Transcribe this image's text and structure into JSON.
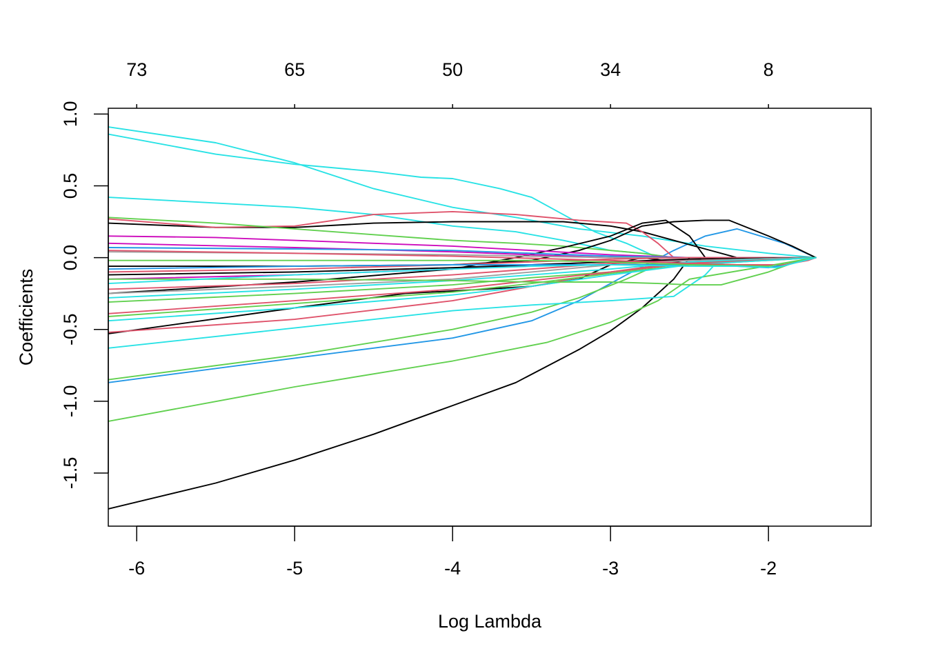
{
  "chart_data": {
    "type": "line",
    "title": "",
    "xlabel": "Log Lambda",
    "ylabel": "Coefficients",
    "xlim": [
      -6.18,
      -1.35
    ],
    "ylim": [
      -1.87,
      1.04
    ],
    "x_ticks": [
      -6,
      -5,
      -4,
      -3,
      -2
    ],
    "x_tick_labels": [
      "-6",
      "-5",
      "-4",
      "-3",
      "-2"
    ],
    "y_ticks": [
      1.0,
      0.5,
      0.0,
      -0.5,
      -1.0,
      -1.5
    ],
    "y_tick_labels": [
      "1.0",
      "0.5",
      "0.0",
      "-0.5",
      "-1.0",
      "-1.5"
    ],
    "top_axis": {
      "ticks": [
        -6,
        -5,
        -4,
        -3,
        -2
      ],
      "labels": [
        "73",
        "65",
        "50",
        "34",
        "8"
      ]
    },
    "grid": false,
    "legend": "none",
    "series": [
      {
        "color": "#000000",
        "x": [
          -6.18,
          -5.5,
          -5.0,
          -4.5,
          -4.0,
          -3.6,
          -3.2,
          -3.0,
          -2.8,
          -2.6,
          -2.5,
          -1.7
        ],
        "values": [
          -1.75,
          -1.57,
          -1.41,
          -1.23,
          -1.03,
          -0.87,
          -0.64,
          -0.51,
          -0.35,
          -0.15,
          0.0,
          0.0
        ]
      },
      {
        "color": "#61D04F",
        "x": [
          -6.18,
          -5.0,
          -4.0,
          -3.4,
          -3.0,
          -2.7,
          -2.5,
          -1.7
        ],
        "values": [
          -1.14,
          -0.9,
          -0.72,
          -0.59,
          -0.45,
          -0.3,
          -0.15,
          0.0
        ]
      },
      {
        "color": "#2297E6",
        "x": [
          -6.18,
          -5.0,
          -4.0,
          -3.5,
          -3.2,
          -2.9,
          -2.6,
          -2.4,
          -2.2,
          -1.9,
          -1.7
        ],
        "values": [
          -0.87,
          -0.7,
          -0.56,
          -0.44,
          -0.3,
          -0.12,
          0.05,
          0.15,
          0.2,
          0.1,
          0.0
        ]
      },
      {
        "color": "#61D04F",
        "x": [
          -6.18,
          -5.0,
          -4.0,
          -3.5,
          -3.2,
          -2.9,
          -2.7,
          -1.7
        ],
        "values": [
          -0.85,
          -0.68,
          -0.5,
          -0.38,
          -0.28,
          -0.15,
          -0.05,
          0.0
        ]
      },
      {
        "color": "#28E2E5",
        "x": [
          -6.18,
          -5.0,
          -4.0,
          -3.5,
          -3.0,
          -2.6,
          -2.4,
          -2.3,
          -1.7
        ],
        "values": [
          -0.63,
          -0.49,
          -0.37,
          -0.33,
          -0.3,
          -0.27,
          -0.12,
          0.0,
          0.0
        ]
      },
      {
        "color": "#000000",
        "x": [
          -6.18,
          -5.0,
          -4.3,
          -3.8,
          -3.5,
          -3.2,
          -3.0,
          -2.8,
          -2.6,
          -2.4,
          -2.2,
          -1.7
        ],
        "values": [
          -0.53,
          -0.35,
          -0.25,
          -0.22,
          -0.2,
          -0.15,
          -0.05,
          0.0,
          -0.03,
          -0.05,
          -0.02,
          0.0
        ]
      },
      {
        "color": "#DF536B",
        "x": [
          -6.18,
          -5.0,
          -4.0,
          -3.5,
          -3.0,
          -2.6,
          -2.3,
          -2.0,
          -1.7
        ],
        "values": [
          -0.52,
          -0.43,
          -0.3,
          -0.2,
          -0.1,
          -0.04,
          -0.03,
          -0.02,
          0.0
        ]
      },
      {
        "color": "#28E2E5",
        "x": [
          -6.18,
          -5.5,
          -5.0,
          -4.5,
          -4.0,
          -3.6,
          -3.2,
          -2.8,
          -2.4,
          -2.0,
          -1.7
        ],
        "values": [
          0.91,
          0.8,
          0.66,
          0.48,
          0.35,
          0.28,
          0.2,
          0.15,
          0.08,
          0.03,
          0.0
        ]
      },
      {
        "color": "#28E2E5",
        "x": [
          -6.18,
          -5.5,
          -5.0,
          -4.5,
          -4.2,
          -4.0,
          -3.7,
          -3.5,
          -3.3,
          -3.1,
          -2.9,
          -2.7,
          -1.7
        ],
        "values": [
          0.86,
          0.72,
          0.65,
          0.6,
          0.56,
          0.55,
          0.48,
          0.42,
          0.3,
          0.18,
          0.1,
          0.0,
          0.0
        ]
      },
      {
        "color": "#28E2E5",
        "x": [
          -6.18,
          -5.5,
          -5.0,
          -4.5,
          -4.0,
          -3.6,
          -3.3,
          -3.0,
          -2.8,
          -2.6,
          -1.7
        ],
        "values": [
          0.42,
          0.38,
          0.35,
          0.3,
          0.22,
          0.18,
          0.12,
          0.05,
          0.03,
          0.0,
          0.0
        ]
      },
      {
        "color": "#000000",
        "x": [
          -6.18,
          -5.5,
          -5.0,
          -4.5,
          -4.0,
          -3.6,
          -3.3,
          -3.0,
          -2.8,
          -2.6,
          -2.2,
          -2.0,
          -1.7
        ],
        "values": [
          0.24,
          0.21,
          0.21,
          0.24,
          0.25,
          0.25,
          0.25,
          0.22,
          0.18,
          0.12,
          0.0,
          0.0,
          0.0
        ]
      },
      {
        "color": "#DF536B",
        "x": [
          -6.18,
          -5.5,
          -5.0,
          -4.5,
          -4.0,
          -3.6,
          -3.2,
          -2.9,
          -2.8,
          -2.7,
          -2.6,
          -1.7
        ],
        "values": [
          0.27,
          0.21,
          0.22,
          0.3,
          0.32,
          0.3,
          0.26,
          0.24,
          0.18,
          0.1,
          0.0,
          0.0
        ]
      },
      {
        "color": "#61D04F",
        "x": [
          -6.18,
          -5.5,
          -5.0,
          -4.5,
          -4.0,
          -3.6,
          -3.3,
          -3.0,
          -2.8,
          -2.6,
          -1.7
        ],
        "values": [
          0.28,
          0.24,
          0.2,
          0.16,
          0.12,
          0.1,
          0.08,
          0.05,
          0.03,
          0.0,
          0.0
        ]
      },
      {
        "color": "#000000",
        "x": [
          -6.18,
          -5.0,
          -4.0,
          -3.5,
          -3.2,
          -3.0,
          -2.8,
          -2.6,
          -2.4,
          -2.25,
          -2.0,
          -1.85,
          -1.7
        ],
        "values": [
          -0.06,
          -0.06,
          -0.05,
          -0.02,
          0.05,
          0.12,
          0.22,
          0.25,
          0.26,
          0.26,
          0.15,
          0.08,
          0.0
        ]
      },
      {
        "color": "#000000",
        "x": [
          -6.18,
          -5.0,
          -4.0,
          -3.6,
          -3.3,
          -3.0,
          -2.8,
          -2.65,
          -2.5,
          -2.4,
          -1.7
        ],
        "values": [
          -0.25,
          -0.17,
          -0.08,
          0.0,
          0.07,
          0.15,
          0.24,
          0.26,
          0.15,
          0.0,
          0.0
        ]
      },
      {
        "color": "#CD0BBC",
        "x": [
          -6.18,
          -5.5,
          -5.0,
          -4.5,
          -4.0,
          -3.5,
          -3.0,
          -2.5,
          -1.7
        ],
        "values": [
          0.15,
          0.14,
          0.12,
          0.1,
          0.08,
          0.05,
          0.02,
          0.0,
          0.0
        ]
      },
      {
        "color": "#CD0BBC",
        "x": [
          -6.18,
          -5.0,
          -4.0,
          -3.5,
          -3.0,
          -2.5,
          -1.7
        ],
        "values": [
          0.1,
          0.07,
          0.04,
          0.02,
          0.0,
          0.0,
          0.0
        ]
      },
      {
        "color": "#2297E6",
        "x": [
          -6.18,
          -5.0,
          -4.0,
          -3.5,
          -3.0,
          -2.5,
          -1.7
        ],
        "values": [
          0.07,
          0.06,
          0.05,
          0.03,
          0.01,
          0.0,
          0.0
        ]
      },
      {
        "color": "#9E9E9E",
        "x": [
          -6.18,
          -5.0,
          -4.0,
          -3.5,
          -3.0,
          -2.5,
          -1.7
        ],
        "values": [
          0.04,
          0.03,
          0.02,
          0.01,
          0.0,
          0.0,
          0.0
        ]
      },
      {
        "color": "#DF536B",
        "x": [
          -6.18,
          -5.0,
          -4.0,
          -3.5,
          -3.0,
          -2.5,
          -1.7
        ],
        "values": [
          -0.1,
          -0.08,
          -0.05,
          -0.03,
          -0.01,
          0.0,
          0.0
        ]
      },
      {
        "color": "#CD0BBC",
        "x": [
          -6.18,
          -5.0,
          -4.0,
          -3.5,
          -3.0,
          -2.5,
          -1.7
        ],
        "values": [
          -0.15,
          -0.12,
          -0.08,
          -0.05,
          -0.03,
          -0.02,
          0.0
        ]
      },
      {
        "color": "#000000",
        "x": [
          -6.18,
          -5.0,
          -4.0,
          -3.5,
          -3.0,
          -2.5,
          -1.7
        ],
        "values": [
          -0.12,
          -0.1,
          -0.07,
          -0.05,
          -0.03,
          -0.01,
          0.0
        ]
      },
      {
        "color": "#DF536B",
        "x": [
          -6.18,
          -5.0,
          -4.0,
          -3.5,
          -3.0,
          -2.5,
          -1.7
        ],
        "values": [
          -0.22,
          -0.18,
          -0.12,
          -0.08,
          -0.04,
          -0.02,
          0.0
        ]
      },
      {
        "color": "#9E9E9E",
        "x": [
          -6.18,
          -5.0,
          -4.0,
          -3.5,
          -3.0,
          -2.5,
          -1.7
        ],
        "values": [
          -0.25,
          -0.2,
          -0.15,
          -0.1,
          -0.05,
          -0.02,
          0.0
        ]
      },
      {
        "color": "#28E2E5",
        "x": [
          -6.18,
          -5.0,
          -4.0,
          -3.5,
          -3.0,
          -2.5,
          -1.7
        ],
        "values": [
          -0.28,
          -0.22,
          -0.16,
          -0.12,
          -0.08,
          -0.03,
          0.0
        ]
      },
      {
        "color": "#61D04F",
        "x": [
          -6.18,
          -5.0,
          -4.0,
          -3.5,
          -3.0,
          -2.5,
          -1.7
        ],
        "values": [
          -0.31,
          -0.25,
          -0.19,
          -0.14,
          -0.1,
          -0.04,
          0.0
        ]
      },
      {
        "color": "#DF536B",
        "x": [
          -6.18,
          -5.0,
          -4.0,
          -3.5,
          -3.0,
          -2.5,
          -1.7
        ],
        "values": [
          -0.39,
          -0.3,
          -0.22,
          -0.16,
          -0.1,
          -0.04,
          0.0
        ]
      },
      {
        "color": "#61D04F",
        "x": [
          -6.18,
          -5.0,
          -4.0,
          -3.5,
          -3.0,
          -2.5,
          -1.7
        ],
        "values": [
          -0.41,
          -0.32,
          -0.24,
          -0.18,
          -0.11,
          -0.05,
          0.0
        ]
      },
      {
        "color": "#28E2E5",
        "x": [
          -6.18,
          -5.0,
          -4.0,
          -3.5,
          -3.0,
          -2.5,
          -1.7
        ],
        "values": [
          -0.44,
          -0.35,
          -0.26,
          -0.2,
          -0.12,
          -0.05,
          0.0
        ]
      },
      {
        "color": "#61D04F",
        "x": [
          -6.18,
          -5.0,
          -4.0,
          -3.5,
          -3.0,
          -2.7,
          -2.5,
          -2.3,
          -2.0,
          -1.85,
          -1.7
        ],
        "values": [
          -0.15,
          -0.15,
          -0.16,
          -0.17,
          -0.17,
          -0.18,
          -0.19,
          -0.19,
          -0.1,
          -0.04,
          0.0
        ]
      },
      {
        "color": "#2297E6",
        "x": [
          -6.18,
          -5.0,
          -4.0,
          -3.5,
          -3.0,
          -2.5,
          -2.2,
          -2.0,
          -1.85,
          -1.7
        ],
        "values": [
          -0.08,
          -0.06,
          -0.05,
          -0.05,
          -0.05,
          -0.05,
          -0.06,
          -0.07,
          -0.04,
          0.0
        ]
      },
      {
        "color": "#DF536B",
        "x": [
          -6.18,
          -5.0,
          -4.0,
          -3.0,
          -2.5,
          -2.2,
          -1.9,
          -1.75,
          -1.7
        ],
        "values": [
          0.05,
          0.03,
          0.01,
          -0.02,
          -0.04,
          -0.05,
          -0.05,
          -0.02,
          0.0
        ]
      },
      {
        "color": "#61D04F",
        "x": [
          -6.18,
          -5.0,
          -4.0,
          -3.5,
          -3.0,
          -2.5,
          -2.0,
          -1.7
        ],
        "values": [
          -0.02,
          -0.02,
          -0.02,
          -0.02,
          -0.03,
          -0.05,
          -0.06,
          0.0
        ]
      },
      {
        "color": "#28E2E5",
        "x": [
          -6.18,
          -5.0,
          -4.0,
          -3.5,
          -3.0,
          -2.5,
          -2.2,
          -1.95,
          -1.7
        ],
        "values": [
          -0.18,
          -0.12,
          -0.08,
          -0.06,
          -0.05,
          -0.06,
          -0.06,
          -0.07,
          0.0
        ]
      }
    ]
  }
}
